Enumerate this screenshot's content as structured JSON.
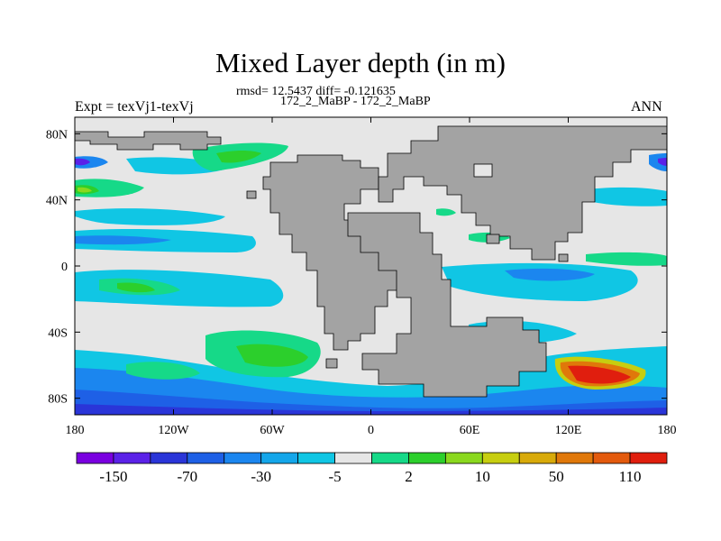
{
  "chart_data": {
    "type": "heatmap",
    "title": "Mixed Layer depth (in m)",
    "stats_text": "rmsd= 12.5437 diff= -0.121635",
    "case_text": "172_2_MaBP - 172_2_MaBP",
    "experiment_text": "Expt = texVj1-texVj",
    "season": "ANN",
    "xlim": [
      -180,
      180
    ],
    "ylim": [
      -90,
      90
    ],
    "x_ticks": [
      {
        "value": -180,
        "label": "180"
      },
      {
        "value": -120,
        "label": "120W"
      },
      {
        "value": -60,
        "label": "60W"
      },
      {
        "value": 0,
        "label": "0"
      },
      {
        "value": 60,
        "label": "60E"
      },
      {
        "value": 120,
        "label": "120E"
      },
      {
        "value": 180,
        "label": "180"
      }
    ],
    "y_ticks": [
      {
        "value": 80,
        "label": "80N"
      },
      {
        "value": 40,
        "label": "40N"
      },
      {
        "value": 0,
        "label": "0"
      },
      {
        "value": -40,
        "label": "40S"
      },
      {
        "value": -80,
        "label": "80S"
      }
    ],
    "colorbar": {
      "colors": [
        "#7a00e0",
        "#5b22e8",
        "#2a35d8",
        "#1e60e6",
        "#1b86ef",
        "#14a6ea",
        "#10c6e4",
        "#e6e6e6",
        "#16d988",
        "#2ccf2c",
        "#8ad81e",
        "#c7ce10",
        "#d8aa0a",
        "#e0780a",
        "#e35a0d",
        "#e01e0e"
      ],
      "labels": [
        "-150",
        "-70",
        "-30",
        "-5",
        "2",
        "10",
        "50",
        "110"
      ]
    },
    "land_color": "#a3a3a3",
    "ocean_color": "#e6e6e6"
  }
}
